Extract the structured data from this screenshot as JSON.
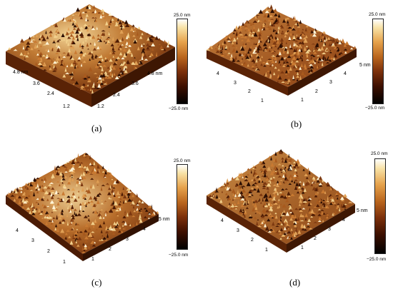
{
  "panels": [
    {
      "caption": "(a)",
      "scale_max": "25.0 nm",
      "scale_min": "−25.0 nm",
      "left_axis_ticks": [
        "4.8 nm",
        "3.6",
        "2.4",
        "1.2"
      ],
      "right_axis_ticks": [
        "4.8 nm",
        "3.6",
        "2.4",
        "1.2"
      ]
    },
    {
      "caption": "(b)",
      "scale_max": "25.0 nm",
      "scale_min": "−25.0 nm",
      "left_axis_ticks": [
        "4",
        "3",
        "2",
        "1"
      ],
      "right_axis_ticks": [
        "5 nm",
        "4",
        "3",
        "2",
        "1"
      ]
    },
    {
      "caption": "(c)",
      "scale_max": "25.0 nm",
      "scale_min": "−25.0 nm",
      "left_axis_ticks": [
        "4",
        "3",
        "2",
        "1"
      ],
      "right_axis_ticks": [
        "5 nm",
        "4",
        "3",
        "2",
        "1"
      ]
    },
    {
      "caption": "(d)",
      "scale_max": "25.0 nm",
      "scale_min": "−25.0 nm",
      "left_axis_ticks": [
        "4",
        "3",
        "2",
        "1"
      ],
      "right_axis_ticks": [
        "5 nm",
        "4",
        "3",
        "2",
        "1"
      ]
    }
  ]
}
